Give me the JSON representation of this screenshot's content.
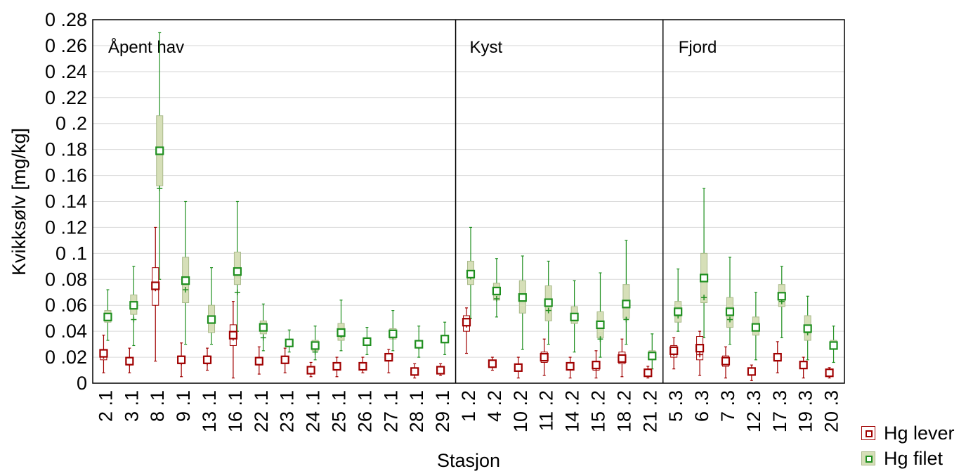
{
  "chart_data": {
    "type": "box",
    "xlabel": "Stasjon",
    "ylabel": "Kvikksølv [mg/kg]",
    "ylim": [
      0,
      0.28
    ],
    "y_ticks": [
      "0 .28",
      "0 .26",
      "0 .24",
      "0 .22",
      "0 .2",
      "0 .18",
      "0 .16",
      "0 .14",
      "0 .12",
      "0 .1",
      "0 .08",
      "0 .06",
      "0 .04",
      "0 .02",
      "0"
    ],
    "y_tick_values": [
      0.28,
      0.26,
      0.24,
      0.22,
      0.2,
      0.18,
      0.16,
      0.14,
      0.12,
      0.1,
      0.08,
      0.06,
      0.04,
      0.02,
      0
    ],
    "grid": "horizontal",
    "legend_position": "bottom-right",
    "panels": [
      {
        "label": "Åpent hav",
        "stations": [
          "2 .1",
          "3 .1",
          "8 .1",
          "9 .1",
          "13 .1",
          "16 .1",
          "22 .1",
          "23 .1",
          "24 .1",
          "25 .1",
          "26 .1",
          "27 .1",
          "28 .1",
          "29 .1"
        ]
      },
      {
        "label": "Kyst",
        "stations": [
          "1 .2",
          "4 .2",
          "10 .2",
          "11 .2",
          "14 .2",
          "15 .2",
          "18 .2",
          "21 .2"
        ]
      },
      {
        "label": "Fjord",
        "stations": [
          "5 .3",
          "6 .3",
          "7 .3",
          "12 .3",
          "17 .3",
          "19 .3",
          "20 .3"
        ]
      }
    ],
    "series": [
      {
        "name": "Hg lever",
        "color": "#a00000",
        "fill": "#ffffff",
        "mean": [
          0.023,
          0.017,
          0.075,
          0.018,
          0.018,
          0.037,
          0.017,
          0.018,
          0.01,
          0.013,
          0.013,
          0.02,
          0.009,
          0.01,
          0.047,
          0.015,
          0.012,
          0.02,
          0.013,
          0.014,
          0.019,
          0.008,
          0.025,
          0.027,
          0.017,
          0.009,
          0.02,
          0.014,
          0.008
        ],
        "median": [
          0.021,
          0.015,
          0.073,
          0.016,
          0.016,
          0.035,
          0.016,
          0.017,
          0.009,
          0.012,
          0.012,
          0.019,
          0.008,
          0.009,
          0.045,
          0.014,
          0.011,
          0.019,
          0.012,
          0.012,
          0.018,
          0.007,
          0.023,
          0.022,
          0.016,
          0.008,
          0.019,
          0.013,
          0.007
        ],
        "q1": [
          0.018,
          0.014,
          0.06,
          0.015,
          0.015,
          0.029,
          0.014,
          0.016,
          0.008,
          0.011,
          0.011,
          0.017,
          0.007,
          0.008,
          0.04,
          0.013,
          0.01,
          0.016,
          0.011,
          0.01,
          0.015,
          0.006,
          0.02,
          0.018,
          0.013,
          0.007,
          0.017,
          0.012,
          0.006
        ],
        "q3": [
          0.026,
          0.019,
          0.089,
          0.021,
          0.021,
          0.045,
          0.019,
          0.02,
          0.012,
          0.015,
          0.015,
          0.022,
          0.011,
          0.012,
          0.052,
          0.017,
          0.014,
          0.024,
          0.015,
          0.017,
          0.024,
          0.01,
          0.029,
          0.036,
          0.021,
          0.011,
          0.023,
          0.016,
          0.01
        ],
        "min": [
          0.008,
          0.008,
          0.017,
          0.005,
          0.01,
          0.004,
          0.007,
          0.008,
          0.005,
          0.005,
          0.008,
          0.008,
          0.004,
          0.006,
          0.023,
          0.01,
          0.004,
          0.006,
          0.004,
          0.004,
          0.005,
          0.004,
          0.011,
          0.006,
          0.004,
          0.002,
          0.008,
          0.004,
          0.004
        ],
        "max": [
          0.037,
          0.027,
          0.12,
          0.031,
          0.027,
          0.063,
          0.028,
          0.027,
          0.016,
          0.02,
          0.02,
          0.026,
          0.015,
          0.015,
          0.058,
          0.02,
          0.02,
          0.034,
          0.02,
          0.025,
          0.034,
          0.013,
          0.035,
          0.04,
          0.028,
          0.014,
          0.032,
          0.02,
          0.012
        ]
      },
      {
        "name": "Hg filet",
        "color": "#1f8f1f",
        "fill": "#d6dfb8",
        "mean": [
          0.051,
          0.06,
          0.179,
          0.079,
          0.049,
          0.086,
          0.043,
          0.031,
          0.029,
          0.039,
          0.032,
          0.038,
          0.03,
          0.034,
          0.084,
          0.071,
          0.066,
          0.062,
          0.051,
          0.045,
          0.061,
          0.021,
          0.055,
          0.081,
          0.055,
          0.043,
          0.067,
          0.042,
          0.029
        ],
        "median": [
          0.05,
          0.049,
          0.15,
          0.072,
          0.049,
          0.07,
          0.035,
          0.03,
          0.024,
          0.037,
          0.031,
          0.036,
          0.028,
          0.033,
          0.082,
          0.065,
          0.066,
          0.056,
          0.05,
          0.034,
          0.049,
          0.02,
          0.052,
          0.066,
          0.049,
          0.042,
          0.063,
          0.039,
          0.029
        ],
        "q1": [
          0.047,
          0.053,
          0.152,
          0.062,
          0.039,
          0.076,
          0.038,
          0.028,
          0.025,
          0.033,
          0.029,
          0.034,
          0.027,
          0.031,
          0.076,
          0.064,
          0.054,
          0.048,
          0.046,
          0.035,
          0.05,
          0.018,
          0.047,
          0.062,
          0.043,
          0.037,
          0.059,
          0.033,
          0.026
        ],
        "q3": [
          0.056,
          0.068,
          0.206,
          0.097,
          0.06,
          0.101,
          0.048,
          0.034,
          0.033,
          0.046,
          0.035,
          0.042,
          0.033,
          0.037,
          0.094,
          0.077,
          0.079,
          0.075,
          0.059,
          0.055,
          0.076,
          0.025,
          0.063,
          0.1,
          0.066,
          0.051,
          0.076,
          0.052,
          0.033
        ],
        "min": [
          0.033,
          0.029,
          0.08,
          0.03,
          0.03,
          0.04,
          0.025,
          0.024,
          0.018,
          0.025,
          0.022,
          0.025,
          0.02,
          0.022,
          0.05,
          0.051,
          0.026,
          0.03,
          0.024,
          0.02,
          0.03,
          0.011,
          0.04,
          0.035,
          0.03,
          0.018,
          0.035,
          0.018,
          0.016
        ],
        "max": [
          0.072,
          0.09,
          0.27,
          0.14,
          0.089,
          0.14,
          0.061,
          0.041,
          0.044,
          0.064,
          0.043,
          0.056,
          0.044,
          0.047,
          0.12,
          0.096,
          0.098,
          0.094,
          0.079,
          0.085,
          0.11,
          0.038,
          0.088,
          0.15,
          0.097,
          0.07,
          0.09,
          0.067,
          0.044
        ]
      }
    ]
  }
}
